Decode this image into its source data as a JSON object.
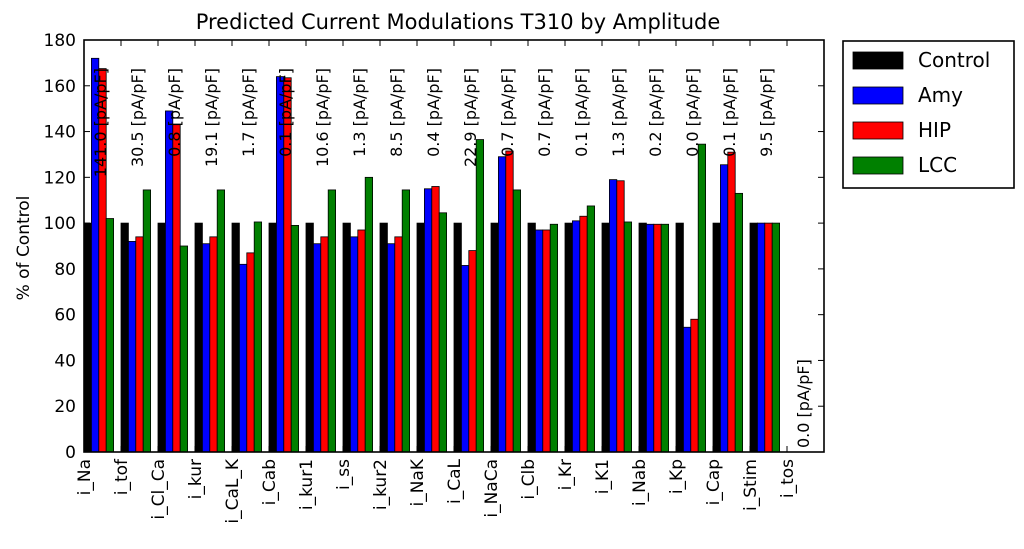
{
  "chart_data": {
    "type": "bar",
    "title": "Predicted Current Modulations T310 by Amplitude",
    "ylabel": "% of Control",
    "xlabel": "",
    "ylim": [
      0,
      180
    ],
    "yticks": [
      0,
      20,
      40,
      60,
      80,
      100,
      120,
      140,
      160,
      180
    ],
    "grid": false,
    "legend_placement": "outside-top-right",
    "categories": [
      "i_Na",
      "i_tof",
      "i_Cl_Ca",
      "i_kur",
      "i_CaL_K",
      "i_Cab",
      "i_kur1",
      "i_ss",
      "i_kur2",
      "i_NaK",
      "i_CaL",
      "i_NaCa",
      "i_Clb",
      "i_Kr",
      "i_K1",
      "i_Nab",
      "i_Kp",
      "i_Cap",
      "i_Stim",
      "i_tos"
    ],
    "series": [
      {
        "name": "Control",
        "color": "#000000",
        "values": [
          100,
          100,
          100,
          100,
          100,
          100,
          100,
          100,
          100,
          100,
          100,
          100,
          100,
          100,
          100,
          100,
          100,
          100,
          100,
          0
        ]
      },
      {
        "name": "Amy",
        "color": "#0000ff",
        "values": [
          172,
          92,
          149,
          91,
          82,
          164,
          91,
          94,
          91,
          115,
          81.5,
          129,
          97,
          101,
          119,
          99.5,
          54.5,
          125.5,
          100,
          0
        ]
      },
      {
        "name": "HIP",
        "color": "#ff0000",
        "values": [
          167.5,
          94,
          143,
          94,
          87,
          163.5,
          94,
          97,
          94,
          116,
          88,
          131.5,
          97,
          103,
          118.5,
          99.5,
          58,
          131,
          100,
          0
        ]
      },
      {
        "name": "LCC",
        "color": "#008000",
        "values": [
          102,
          114.5,
          90,
          114.5,
          100.5,
          99,
          114.5,
          120,
          114.5,
          104.5,
          136.5,
          114.5,
          99.5,
          107.5,
          100.5,
          99.5,
          134.5,
          113,
          100,
          0
        ]
      }
    ],
    "annotations": [
      "141.0 [pA/pF]",
      "30.5 [pA/pF]",
      "0.8 [pA/pF]",
      "19.1 [pA/pF]",
      "1.7 [pA/pF]",
      "0.1 [pA/pF]",
      "10.6 [pA/pF]",
      "1.3 [pA/pF]",
      "8.5 [pA/pF]",
      "0.4 [pA/pF]",
      "22.9 [pA/pF]",
      "0.7 [pA/pF]",
      "0.7 [pA/pF]",
      "0.1 [pA/pF]",
      "1.3 [pA/pF]",
      "0.2 [pA/pF]",
      "0.0 [pA/pF]",
      "0.1 [pA/pF]",
      "9.5 [pA/pF]",
      "0.0 [pA/pF]"
    ]
  }
}
